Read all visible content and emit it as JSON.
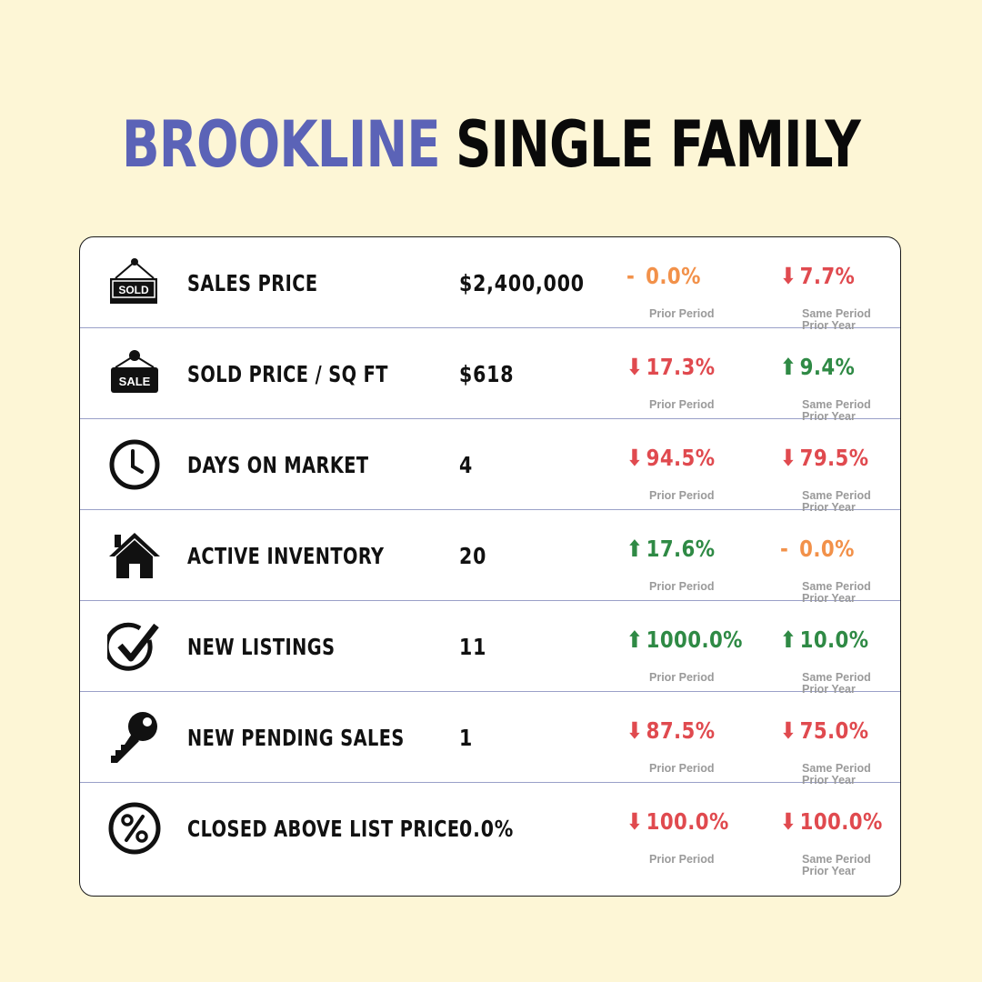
{
  "title": {
    "city": "BROOKLINE",
    "kind": "SINGLE FAMILY"
  },
  "labels": {
    "prior_period": "Prior Period",
    "same_period_line1": "Same Period",
    "same_period_line2": "Prior Year"
  },
  "colors": {
    "down": "#e04a4f",
    "up": "#2f8a45",
    "flat": "#f2914a",
    "title_accent": "#5b63b7"
  },
  "rows": [
    {
      "icon": "sold-sign-icon",
      "metric": "SALES PRICE",
      "value": "$2,400,000",
      "prior_period": {
        "dir": "flat",
        "symbol": "-",
        "text": "0.0%"
      },
      "prior_year": {
        "dir": "down",
        "symbol": "⬇",
        "text": "7.7%"
      }
    },
    {
      "icon": "sale-sign-icon",
      "metric": "SOLD PRICE / SQ FT",
      "value": "$618",
      "prior_period": {
        "dir": "down",
        "symbol": "⬇",
        "text": "17.3%"
      },
      "prior_year": {
        "dir": "up",
        "symbol": "⬆",
        "text": "9.4%"
      }
    },
    {
      "icon": "clock-icon",
      "metric": "DAYS ON MARKET",
      "value": "4",
      "prior_period": {
        "dir": "down",
        "symbol": "⬇",
        "text": "94.5%"
      },
      "prior_year": {
        "dir": "down",
        "symbol": "⬇",
        "text": "79.5%"
      }
    },
    {
      "icon": "house-icon",
      "metric": "ACTIVE INVENTORY",
      "value": "20",
      "prior_period": {
        "dir": "up",
        "symbol": "⬆",
        "text": "17.6%"
      },
      "prior_year": {
        "dir": "flat",
        "symbol": "-",
        "text": "0.0%"
      }
    },
    {
      "icon": "checkmark-icon",
      "metric": "NEW LISTINGS",
      "value": "11",
      "prior_period": {
        "dir": "up",
        "symbol": "⬆",
        "text": "1000.0%"
      },
      "prior_year": {
        "dir": "up",
        "symbol": "⬆",
        "text": "10.0%"
      }
    },
    {
      "icon": "key-icon",
      "metric": "NEW PENDING SALES",
      "value": "1",
      "prior_period": {
        "dir": "down",
        "symbol": "⬇",
        "text": "87.5%"
      },
      "prior_year": {
        "dir": "down",
        "symbol": "⬇",
        "text": "75.0%"
      }
    },
    {
      "icon": "percent-icon",
      "metric": "CLOSED ABOVE LIST PRICE",
      "value": "0.0%",
      "prior_period": {
        "dir": "down",
        "symbol": "⬇",
        "text": "100.0%"
      },
      "prior_year": {
        "dir": "down",
        "symbol": "⬇",
        "text": "100.0%"
      }
    }
  ]
}
